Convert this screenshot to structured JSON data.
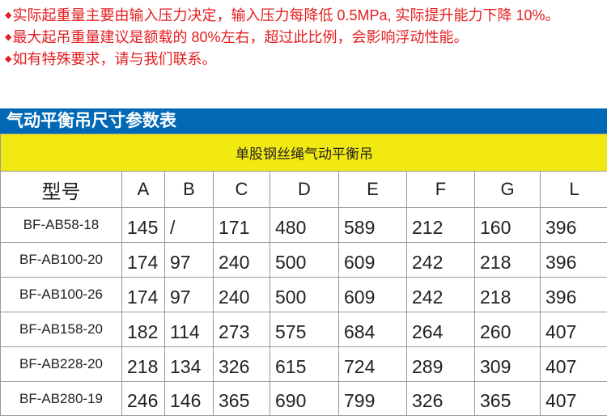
{
  "notes": [
    "实际起重量主要由输入压力决定，输入压力每降低 0.5MPa, 实际提升能力下降 10%。",
    "最大起吊重量建议是额载的 80%左右，超过此比例，会影响浮动性能。",
    "如有特殊要求，请与我们联系。"
  ],
  "bullet": "◆",
  "section_title": "气动平衡吊尺寸参数表",
  "table": {
    "subtitle": "单股钢丝绳气动平衡吊",
    "headers": [
      "型号",
      "A",
      "B",
      "C",
      "D",
      "E",
      "F",
      "G",
      "L"
    ],
    "rows": [
      [
        "BF-AB58-18",
        "145",
        "/",
        "171",
        "480",
        "589",
        "212",
        "160",
        "396"
      ],
      [
        "BF-AB100-20",
        "174",
        "97",
        "240",
        "500",
        "609",
        "242",
        "218",
        "396"
      ],
      [
        "BF-AB100-26",
        "174",
        "97",
        "240",
        "500",
        "609",
        "242",
        "218",
        "396"
      ],
      [
        "BF-AB158-20",
        "182",
        "114",
        "273",
        "575",
        "684",
        "264",
        "260",
        "407"
      ],
      [
        "BF-AB228-20",
        "218",
        "134",
        "326",
        "615",
        "724",
        "289",
        "309",
        "407"
      ],
      [
        "BF-AB280-19",
        "246",
        "146",
        "365",
        "690",
        "799",
        "326",
        "365",
        "407"
      ]
    ]
  },
  "colors": {
    "note_text": "#e41e20",
    "title_bar": "#0068b4",
    "subtitle_bar": "#f3e912"
  }
}
